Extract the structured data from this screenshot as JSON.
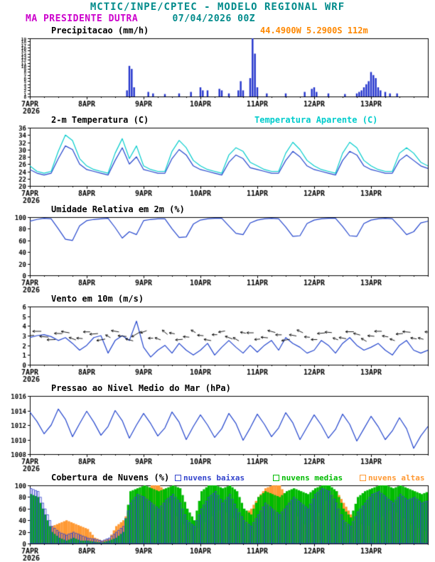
{
  "header": {
    "title": "MCTIC/INPE/CPTEC - MODELO REGIONAL WRF",
    "station": "MA PRESIDENTE DUTRA",
    "run": "07/04/2026 00Z",
    "coords": "44.4900W 5.2900S 112m"
  },
  "colors": {
    "teal": "#008b8b",
    "magenta": "#cc00cc",
    "orange": "#ff8800",
    "axis": "#000000",
    "precip_blue": "#2233cc",
    "line_blue": "#2244cc",
    "cyan": "#00cccc",
    "cloud_low": "#3344cc",
    "cloud_mid": "#00bb00",
    "cloud_high": "#ff9933"
  },
  "x_axis": {
    "hours_span": [
      0,
      168
    ],
    "minor_step": 6,
    "tick_hours": [
      0,
      24,
      48,
      72,
      96,
      120,
      144
    ],
    "tick_labels": [
      "7APR",
      "8APR",
      "9APR",
      "10APR",
      "11APR",
      "12APR",
      "13APR"
    ],
    "year_label": "2026"
  },
  "chart_data": [
    {
      "type": "bar",
      "title": "Precipitacao (mm/h)",
      "ylabel": "mm/h",
      "ylim": [
        0,
        19
      ],
      "yticks": [
        0,
        1,
        2,
        3,
        4,
        5,
        6,
        7,
        8,
        9,
        10,
        11,
        12,
        13,
        14,
        15,
        16,
        17,
        18,
        19
      ],
      "ytick_font": 6,
      "bar_color_key": "precip_blue",
      "events": [
        [
          41,
          2
        ],
        [
          42,
          10
        ],
        [
          43,
          9
        ],
        [
          44,
          3
        ],
        [
          50,
          1.5
        ],
        [
          52,
          1
        ],
        [
          57,
          0.8
        ],
        [
          63,
          1
        ],
        [
          68,
          1.5
        ],
        [
          72,
          3
        ],
        [
          73,
          2
        ],
        [
          75,
          2
        ],
        [
          80,
          2.5
        ],
        [
          81,
          2
        ],
        [
          84,
          1
        ],
        [
          88,
          2
        ],
        [
          89,
          5
        ],
        [
          90,
          2
        ],
        [
          93,
          6
        ],
        [
          94,
          19
        ],
        [
          95,
          14
        ],
        [
          96,
          3
        ],
        [
          100,
          1
        ],
        [
          108,
          1
        ],
        [
          116,
          1.5
        ],
        [
          119,
          2.5
        ],
        [
          120,
          3
        ],
        [
          121,
          1.5
        ],
        [
          126,
          1
        ],
        [
          133,
          0.8
        ],
        [
          138,
          1
        ],
        [
          139,
          1.5
        ],
        [
          140,
          2
        ],
        [
          141,
          3
        ],
        [
          142,
          4
        ],
        [
          143,
          5
        ],
        [
          144,
          8
        ],
        [
          145,
          7
        ],
        [
          146,
          6
        ],
        [
          147,
          3
        ],
        [
          148,
          2
        ],
        [
          150,
          1.5
        ],
        [
          152,
          1
        ],
        [
          155,
          1
        ]
      ]
    },
    {
      "type": "line",
      "title": "2-m Temperatura (C)",
      "ylim": [
        20,
        36
      ],
      "yticks": [
        20,
        22,
        24,
        26,
        28,
        30,
        32,
        34,
        36
      ],
      "series": [
        {
          "name": "2-m Temperatura (C)",
          "color_key": "line_blue",
          "step_hours": 3,
          "values": [
            24.5,
            23.5,
            23.0,
            23.5,
            27.5,
            31.0,
            30.0,
            26.0,
            24.5,
            24.0,
            23.5,
            23.0,
            27.0,
            30.5,
            26.0,
            28.0,
            24.5,
            24.0,
            23.5,
            23.5,
            27.5,
            30.0,
            28.5,
            25.5,
            24.5,
            24.0,
            23.5,
            23.0,
            26.5,
            28.5,
            27.5,
            25.0,
            24.5,
            24.0,
            23.5,
            23.5,
            27.0,
            29.5,
            28.0,
            25.5,
            24.5,
            24.0,
            23.5,
            23.0,
            27.0,
            29.5,
            28.5,
            25.5,
            24.5,
            24.0,
            23.5,
            23.5,
            27.0,
            28.5,
            27.0,
            25.5,
            24.8
          ]
        },
        {
          "name": "Temperatura Aparente (C)",
          "color_key": "cyan",
          "step_hours": 3,
          "values": [
            25.5,
            24.0,
            23.5,
            24.0,
            29.5,
            34.0,
            32.5,
            27.5,
            25.5,
            24.5,
            24.0,
            23.5,
            29.0,
            33.0,
            27.5,
            31.0,
            25.5,
            24.5,
            24.0,
            24.0,
            29.5,
            32.5,
            30.5,
            27.0,
            25.5,
            24.5,
            24.0,
            23.5,
            28.5,
            30.5,
            29.5,
            26.5,
            25.5,
            24.5,
            24.0,
            24.0,
            29.0,
            32.0,
            30.0,
            27.0,
            25.5,
            24.5,
            24.0,
            23.5,
            29.0,
            32.0,
            30.5,
            27.0,
            25.5,
            24.5,
            24.0,
            24.0,
            29.0,
            30.5,
            29.0,
            26.5,
            25.5
          ]
        }
      ]
    },
    {
      "type": "line",
      "title": "Umidade Relativa em 2m (%)",
      "ylim": [
        0,
        100
      ],
      "yticks": [
        0,
        20,
        40,
        60,
        80,
        100
      ],
      "series": [
        {
          "name": "Umidade Relativa",
          "color_key": "line_blue",
          "step_hours": 3,
          "values": [
            93,
            96,
            98,
            97,
            80,
            62,
            60,
            85,
            94,
            96,
            97,
            98,
            82,
            64,
            75,
            70,
            94,
            96,
            97,
            97,
            80,
            65,
            66,
            88,
            95,
            97,
            98,
            98,
            85,
            72,
            70,
            90,
            95,
            97,
            98,
            97,
            83,
            67,
            68,
            89,
            95,
            97,
            98,
            98,
            84,
            68,
            67,
            89,
            95,
            97,
            98,
            97,
            84,
            70,
            75,
            90,
            93
          ]
        }
      ]
    },
    {
      "type": "wind",
      "title": "Vento em 10m (m/s)",
      "ylim": [
        0,
        6
      ],
      "yticks": [
        0,
        1,
        2,
        3,
        4,
        5,
        6
      ],
      "barb_level": 3,
      "series": [
        {
          "name": "Velocidade do Vento",
          "color_key": "line_blue",
          "step_hours": 3,
          "values": [
            2.8,
            3.0,
            3.1,
            2.9,
            2.5,
            2.8,
            2.2,
            1.5,
            2.0,
            2.8,
            3.0,
            1.2,
            2.5,
            3.0,
            2.5,
            4.5,
            1.8,
            0.8,
            1.5,
            2.0,
            1.2,
            2.2,
            1.5,
            1.0,
            1.5,
            2.2,
            1.0,
            1.8,
            2.5,
            1.8,
            1.2,
            2.0,
            1.3,
            2.0,
            2.5,
            1.5,
            2.8,
            2.2,
            1.8,
            1.2,
            1.5,
            2.5,
            2.0,
            1.2,
            2.2,
            2.8,
            2.0,
            1.5,
            1.8,
            2.2,
            1.5,
            1.0,
            2.0,
            2.5,
            1.5,
            1.2,
            1.5
          ]
        }
      ],
      "dir_from_deg": [
        85,
        90,
        95,
        88,
        92,
        100,
        110,
        95,
        90,
        85,
        80,
        120,
        100,
        95,
        105,
        60,
        70,
        90,
        110,
        130,
        100,
        85,
        95,
        120,
        95,
        100,
        90,
        80,
        110,
        120,
        100,
        90,
        85,
        95,
        105,
        90,
        80,
        100,
        115,
        95,
        90,
        85,
        95,
        110,
        100,
        90,
        105,
        120,
        95,
        90,
        100,
        110,
        85,
        95,
        100,
        105,
        95
      ]
    },
    {
      "type": "line",
      "title": "Pressao ao Nivel Medio do Mar (hPa)",
      "ylim": [
        1008,
        1016
      ],
      "yticks": [
        1008,
        1010,
        1012,
        1014,
        1016
      ],
      "series": [
        {
          "name": "Pressao ao Nivel Medio do Mar",
          "color_key": "line_blue",
          "step_hours": 3,
          "values": [
            1013.8,
            1012.5,
            1010.8,
            1012.0,
            1014.2,
            1012.8,
            1010.4,
            1012.2,
            1013.9,
            1012.4,
            1010.6,
            1011.8,
            1014.0,
            1012.6,
            1010.2,
            1012.0,
            1013.6,
            1012.2,
            1010.5,
            1011.6,
            1013.8,
            1012.4,
            1010.0,
            1011.8,
            1013.4,
            1012.0,
            1010.3,
            1011.5,
            1013.6,
            1012.2,
            1009.9,
            1011.6,
            1013.5,
            1012.1,
            1010.4,
            1011.6,
            1013.7,
            1012.3,
            1010.0,
            1011.7,
            1013.4,
            1012.0,
            1010.2,
            1011.4,
            1013.5,
            1012.1,
            1009.8,
            1011.5,
            1013.2,
            1011.8,
            1010.0,
            1011.2,
            1013.0,
            1011.5,
            1008.8,
            1010.5,
            1011.8
          ]
        }
      ]
    },
    {
      "type": "cloud",
      "title": "Cobertura de Nuvens (%)",
      "ylim": [
        0,
        100
      ],
      "yticks": [
        0,
        20,
        40,
        60,
        80,
        100
      ],
      "series": [
        {
          "name": "nuvens baixas",
          "color_key": "cloud_low",
          "step_hours": 3,
          "values": [
            95,
            90,
            60,
            30,
            20,
            15,
            20,
            15,
            10,
            8,
            5,
            10,
            20,
            30,
            70,
            85,
            80,
            70,
            60,
            75,
            85,
            70,
            40,
            30,
            60,
            80,
            90,
            70,
            85,
            60,
            40,
            30,
            50,
            70,
            60,
            50,
            65,
            80,
            70,
            60,
            85,
            95,
            90,
            70,
            40,
            30,
            55,
            70,
            85,
            90,
            80,
            70,
            85,
            75,
            80,
            70,
            75
          ]
        },
        {
          "name": "nuvens medias",
          "color_key": "cloud_mid",
          "step_hours": 3,
          "values": [
            85,
            80,
            50,
            20,
            10,
            5,
            10,
            5,
            5,
            3,
            2,
            5,
            10,
            20,
            90,
            95,
            100,
            95,
            90,
            95,
            100,
            95,
            60,
            40,
            90,
            100,
            100,
            95,
            100,
            90,
            60,
            50,
            80,
            90,
            85,
            80,
            90,
            95,
            90,
            85,
            95,
            100,
            100,
            90,
            60,
            45,
            80,
            90,
            95,
            100,
            100,
            95,
            100,
            95,
            90,
            85,
            90
          ]
        },
        {
          "name": "nuvens altas",
          "color_key": "cloud_high",
          "step_hours": 3,
          "values": [
            0,
            0,
            10,
            30,
            35,
            40,
            35,
            30,
            25,
            10,
            5,
            8,
            30,
            40,
            60,
            80,
            90,
            100,
            100,
            90,
            60,
            40,
            30,
            20,
            30,
            40,
            50,
            60,
            50,
            40,
            50,
            60,
            80,
            95,
            100,
            100,
            80,
            60,
            40,
            30,
            40,
            60,
            80,
            90,
            70,
            50,
            40,
            30,
            30,
            40,
            50,
            60,
            50,
            40,
            30,
            25,
            20
          ]
        }
      ]
    }
  ]
}
